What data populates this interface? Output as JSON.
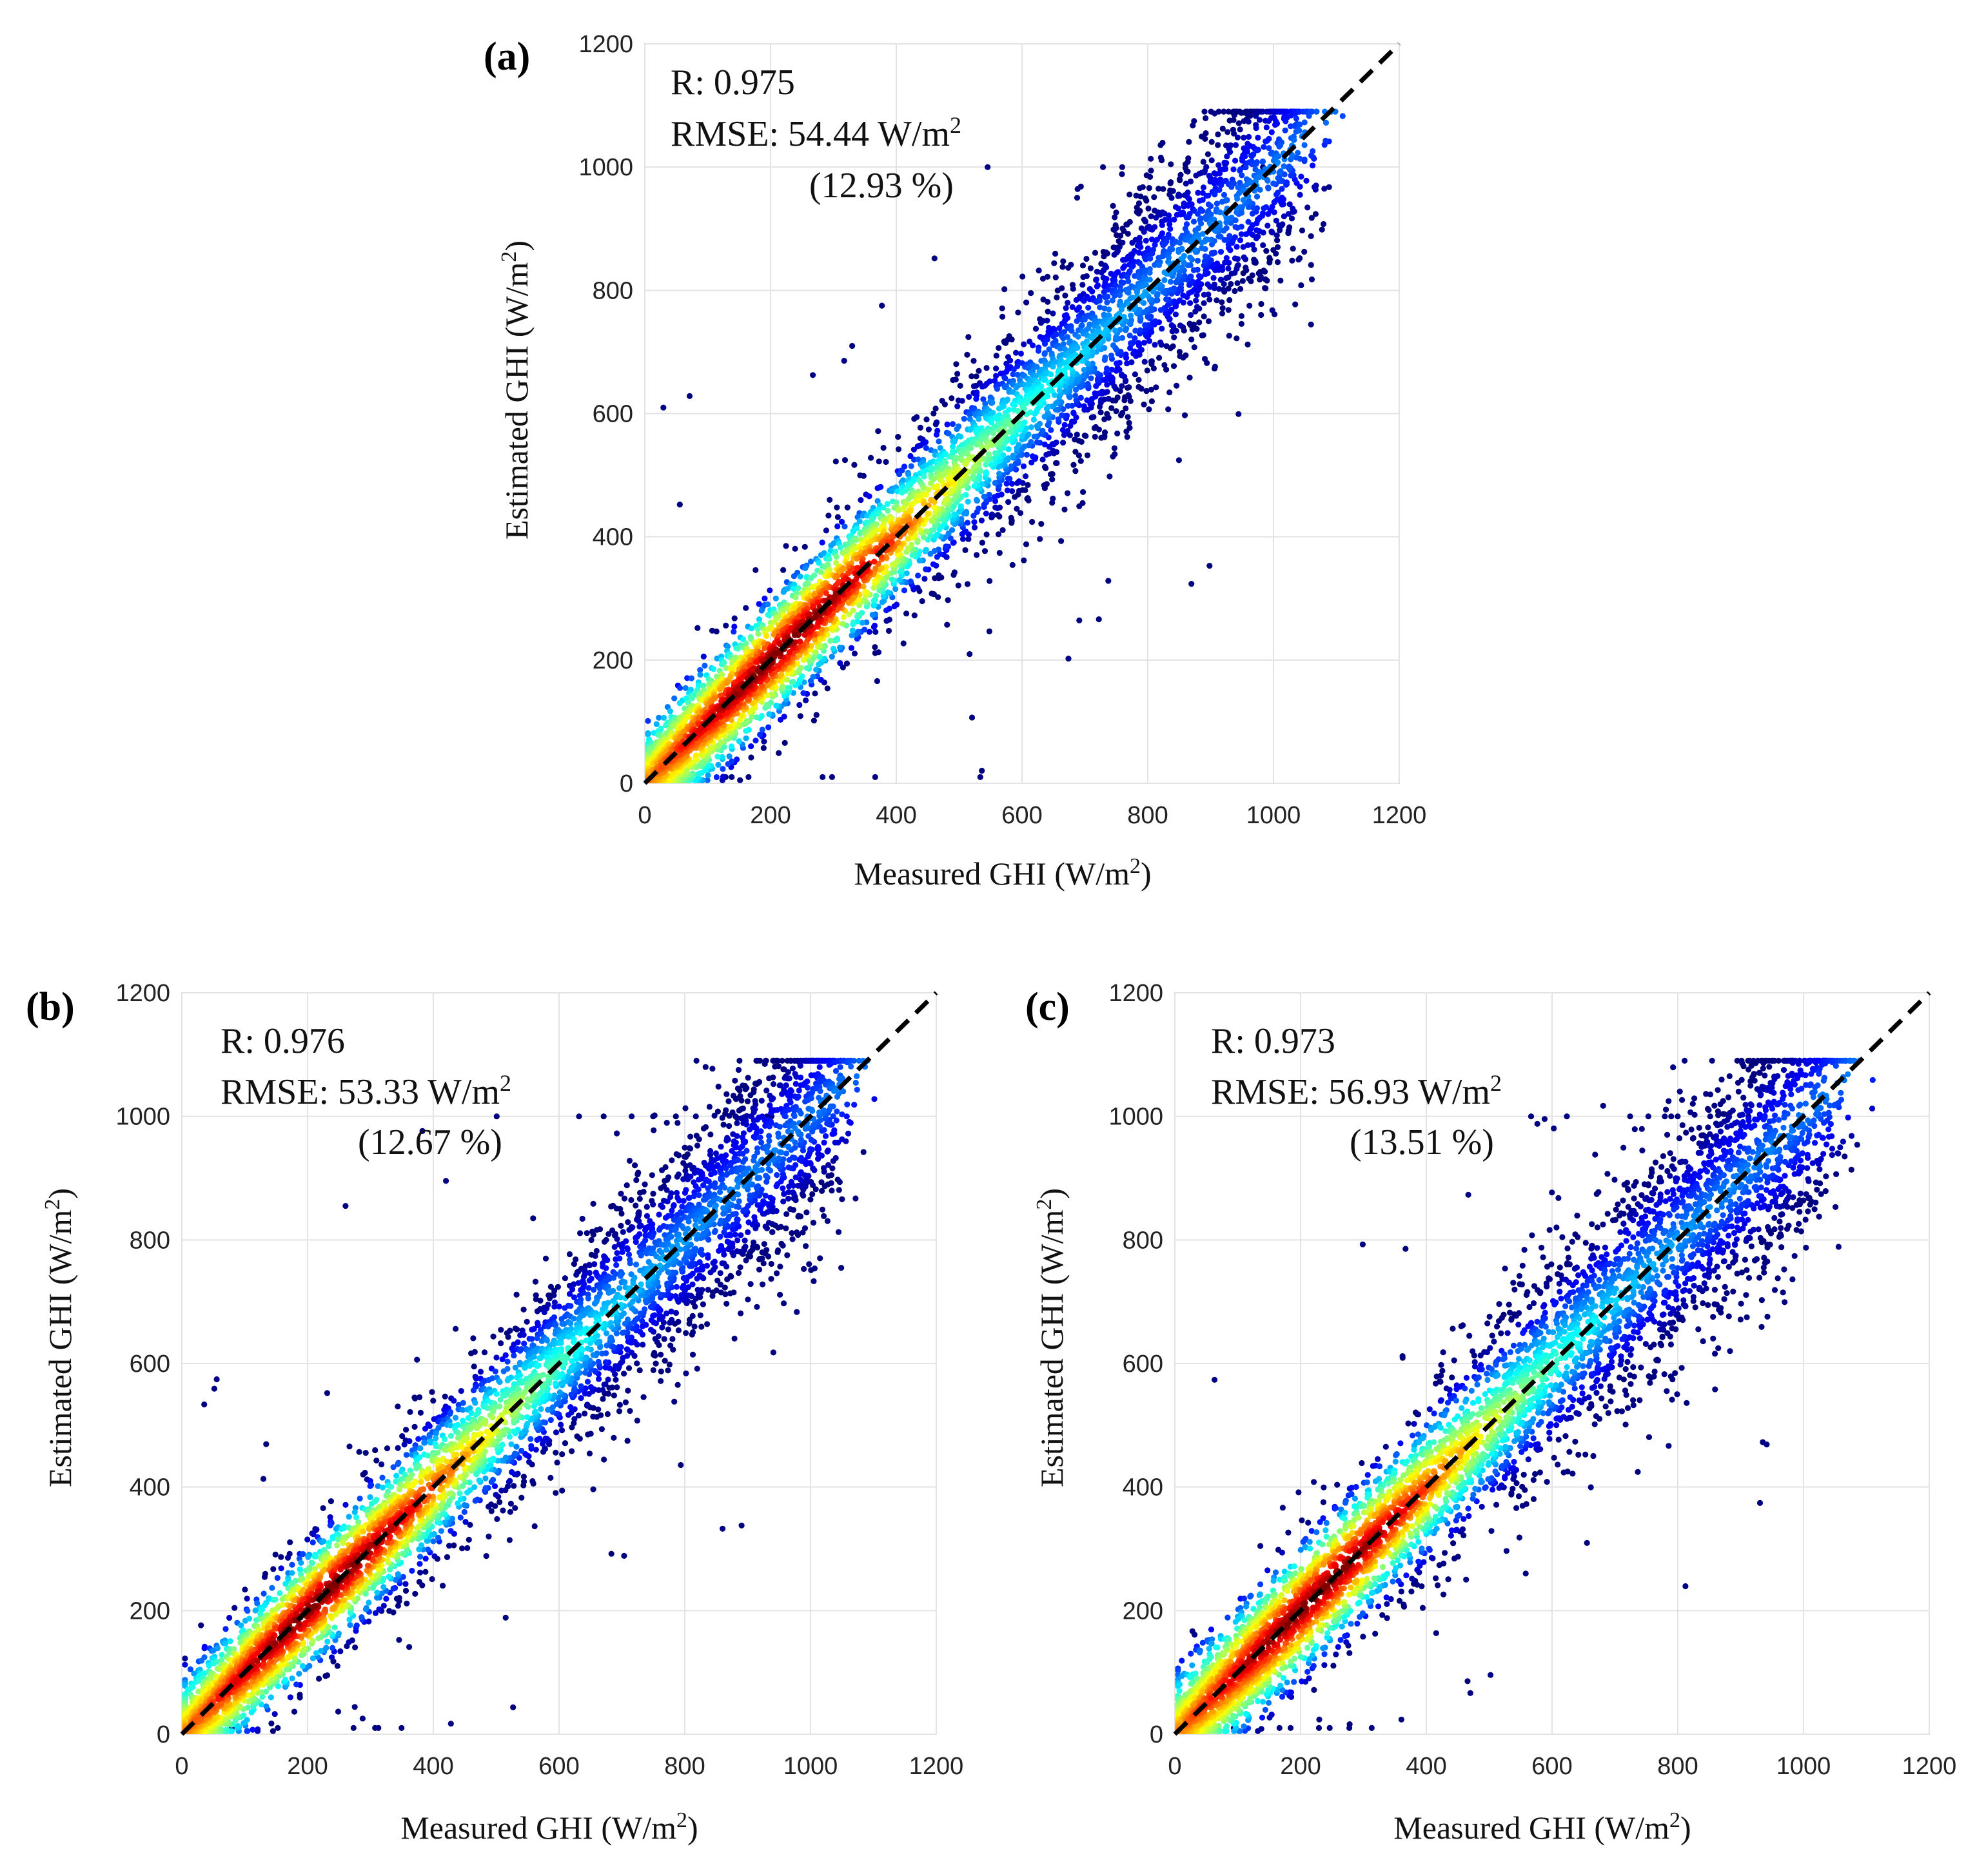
{
  "figure": {
    "ylabel_text": "Estimated GHI (W/m",
    "xlabel_text": "Measured GHI (W/m",
    "unit_close": ")",
    "superscript": "2"
  },
  "chart_data": [
    {
      "type": "scatter",
      "subtype": "density-scatter",
      "panel": "(a)",
      "xlabel": "Measured GHI (W/m²)",
      "ylabel": "Estimated GHI (W/m²)",
      "xlim": [
        0,
        1200
      ],
      "ylim": [
        0,
        1200
      ],
      "xticks": [
        0,
        200,
        400,
        600,
        800,
        1000,
        1200
      ],
      "yticks": [
        0,
        200,
        400,
        600,
        800,
        1000,
        1200
      ],
      "grid": true,
      "reference_line": {
        "style": "dashed",
        "color": "#000000",
        "from": [
          0,
          0
        ],
        "to": [
          1200,
          1200
        ]
      },
      "colormap": "jet",
      "stats": {
        "r_line": "R: 0.975",
        "rmse_line": "RMSE: 54.44 W/m",
        "rmse_sup": "2",
        "pct_line": "(12.93 %)"
      },
      "R": 0.975,
      "RMSE": 54.44,
      "RMSE_pct": 12.93,
      "spread": 78,
      "seed": 11
    },
    {
      "type": "scatter",
      "subtype": "density-scatter",
      "panel": "(b)",
      "xlabel": "Measured GHI (W/m²)",
      "ylabel": "Estimated GHI (W/m²)",
      "xlim": [
        0,
        1200
      ],
      "ylim": [
        0,
        1200
      ],
      "xticks": [
        0,
        200,
        400,
        600,
        800,
        1000,
        1200
      ],
      "yticks": [
        0,
        200,
        400,
        600,
        800,
        1000,
        1200
      ],
      "grid": true,
      "reference_line": {
        "style": "dashed",
        "color": "#000000",
        "from": [
          0,
          0
        ],
        "to": [
          1200,
          1200
        ]
      },
      "colormap": "jet",
      "stats": {
        "r_line": "R: 0.976",
        "rmse_line": "RMSE: 53.33 W/m",
        "rmse_sup": "2",
        "pct_line": "(12.67 %)"
      },
      "R": 0.976,
      "RMSE": 53.33,
      "RMSE_pct": 12.67,
      "spread": 76,
      "seed": 23
    },
    {
      "type": "scatter",
      "subtype": "density-scatter",
      "panel": "(c)",
      "xlabel": "Measured GHI (W/m²)",
      "ylabel": "Estimated GHI (W/m²)",
      "xlim": [
        0,
        1200
      ],
      "ylim": [
        0,
        1200
      ],
      "xticks": [
        0,
        200,
        400,
        600,
        800,
        1000,
        1200
      ],
      "yticks": [
        0,
        200,
        400,
        600,
        800,
        1000,
        1200
      ],
      "grid": true,
      "reference_line": {
        "style": "dashed",
        "color": "#000000",
        "from": [
          0,
          0
        ],
        "to": [
          1200,
          1200
        ]
      },
      "colormap": "jet",
      "stats": {
        "r_line": "R: 0.973",
        "rmse_line": "RMSE: 56.93 W/m",
        "rmse_sup": "2",
        "pct_line": "(13.51 %)"
      },
      "R": 0.973,
      "RMSE": 56.93,
      "RMSE_pct": 13.51,
      "spread": 82,
      "seed": 37
    }
  ]
}
